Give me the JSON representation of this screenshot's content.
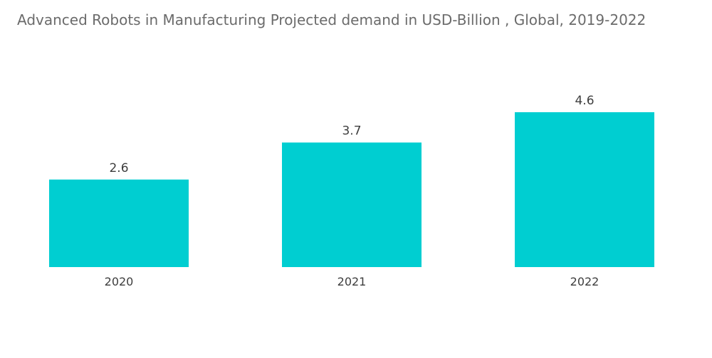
{
  "chart_data": {
    "type": "bar",
    "title": "Advanced Robots in Manufacturing Projected demand in USD-Billion , Global, 2019-2022",
    "categories": [
      "2020",
      "2021",
      "2022"
    ],
    "values": [
      2.6,
      3.7,
      4.6
    ],
    "data_labels": [
      "2.6",
      "3.7",
      "4.6"
    ],
    "xlabel": "",
    "ylabel": "",
    "ylim": [
      0,
      6.4
    ],
    "grid": false,
    "legend": "none",
    "bar_color": "#00ced1"
  }
}
